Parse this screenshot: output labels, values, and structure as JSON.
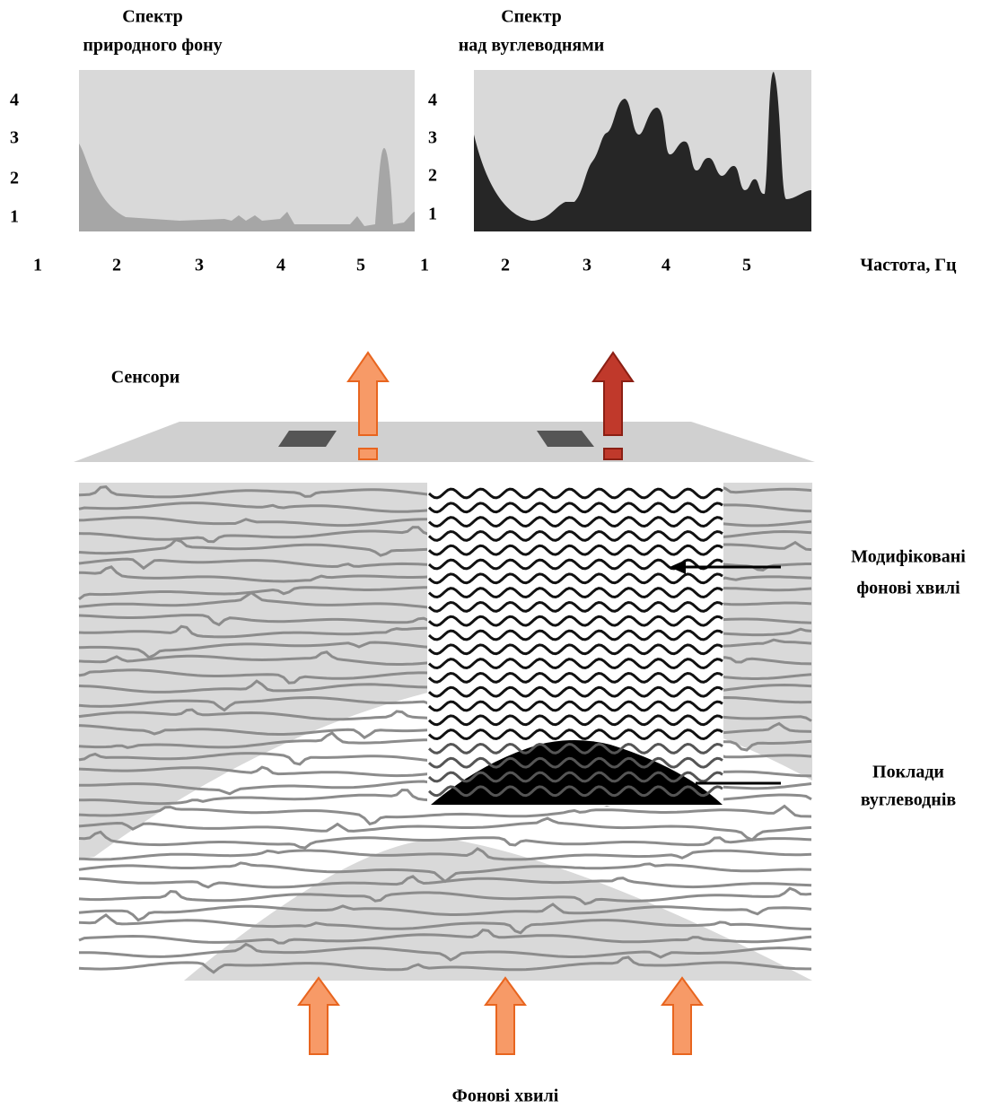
{
  "spectra": [
    {
      "title_lines": [
        "Спектр",
        "природного фону"
      ],
      "y_labels": [
        4,
        3,
        2,
        1
      ],
      "x_labels": [
        1,
        2,
        3,
        4,
        5
      ]
    },
    {
      "title_lines": [
        "Спектр",
        "над вуглеводнями"
      ],
      "y_labels": [
        4,
        3,
        2,
        1
      ],
      "x_labels": [
        1,
        2,
        3,
        4,
        5
      ]
    }
  ],
  "x_axis_label": "Частота, Гц",
  "sensors_label": "Сенсори",
  "labels": {
    "modified": [
      "Модифіковані",
      "фонові хвилі"
    ],
    "deposits": [
      "Поклади",
      "вуглеводнів"
    ],
    "background": "Фонові хвилі"
  }
}
